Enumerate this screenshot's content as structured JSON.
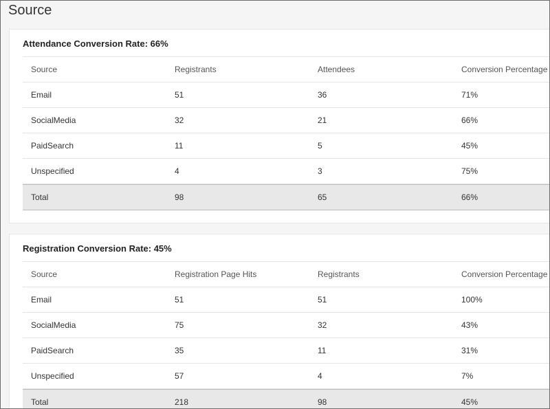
{
  "page": {
    "title": "Source"
  },
  "attendance": {
    "heading": "Attendance Conversion Rate: 66%",
    "columns": [
      "Source",
      "Registrants",
      "Attendees",
      "Conversion Percentage"
    ],
    "rows": [
      [
        "Email",
        "51",
        "36",
        "71%"
      ],
      [
        "SocialMedia",
        "32",
        "21",
        "66%"
      ],
      [
        "PaidSearch",
        "11",
        "5",
        "45%"
      ],
      [
        "Unspecified",
        "4",
        "3",
        "75%"
      ]
    ],
    "total": [
      "Total",
      "98",
      "65",
      "66%"
    ]
  },
  "registration": {
    "heading": "Registration Conversion Rate: 45%",
    "columns": [
      "Source",
      "Registration Page Hits",
      "Registrants",
      "Conversion Percentage"
    ],
    "rows": [
      [
        "Email",
        "51",
        "51",
        "100%"
      ],
      [
        "SocialMedia",
        "75",
        "32",
        "43%"
      ],
      [
        "PaidSearch",
        "35",
        "11",
        "31%"
      ],
      [
        "Unspecified",
        "57",
        "4",
        "7%"
      ]
    ],
    "total": [
      "Total",
      "218",
      "98",
      "45%"
    ]
  }
}
